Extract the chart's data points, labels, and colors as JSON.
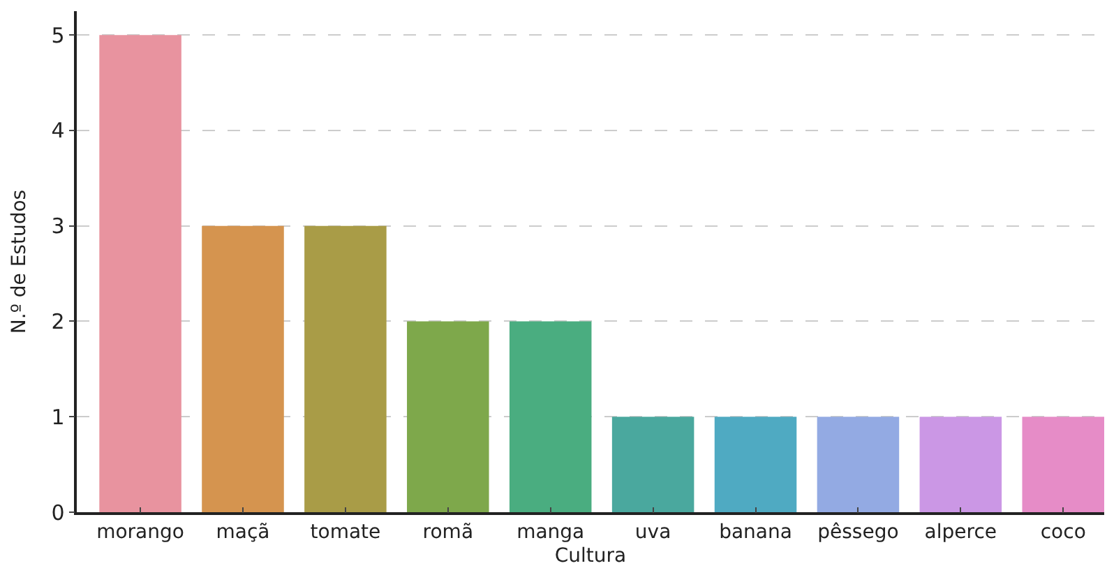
{
  "chart_data": {
    "type": "bar",
    "xlabel": "Cultura",
    "ylabel": "N.º de Estudos",
    "categories": [
      "morango",
      "maçã",
      "tomate",
      "romã",
      "manga",
      "uva",
      "banana",
      "pêssego",
      "alperce",
      "coco"
    ],
    "values": [
      5,
      3,
      3,
      2,
      2,
      1,
      1,
      1,
      1,
      1
    ],
    "colors": [
      "#e8939f",
      "#d5944f",
      "#a99c47",
      "#7ea84b",
      "#4aad80",
      "#4aa89e",
      "#4faac2",
      "#93aae3",
      "#cb97e5",
      "#e68cc7"
    ],
    "ylim": [
      0,
      5.25
    ],
    "yticks": [
      0,
      1,
      2,
      3,
      4,
      5
    ],
    "grid": "y"
  }
}
